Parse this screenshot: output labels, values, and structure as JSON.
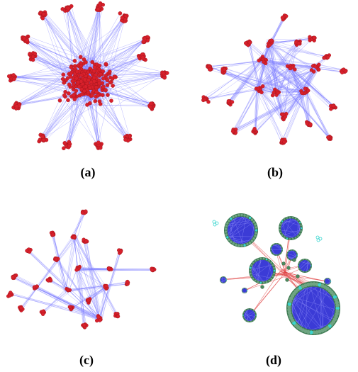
{
  "figure": {
    "panels": [
      {
        "id": "a",
        "caption": "(a)",
        "description_kind": "dense-network"
      },
      {
        "id": "b",
        "caption": "(b)",
        "description_kind": "clustered-network"
      },
      {
        "id": "c",
        "caption": "(c)",
        "description_kind": "sparse-clustered-network"
      },
      {
        "id": "d",
        "caption": "(d)",
        "description_kind": "community-circles-network"
      }
    ]
  },
  "colors": {
    "node": "#d8202b",
    "node_stroke": "#a0141c",
    "edge": "#7f7fff",
    "community_ring": "#3e7a52",
    "community_fill": "#3b3bd6",
    "community_highlight": "#38d6d0",
    "inter_edge": "#e04040"
  }
}
